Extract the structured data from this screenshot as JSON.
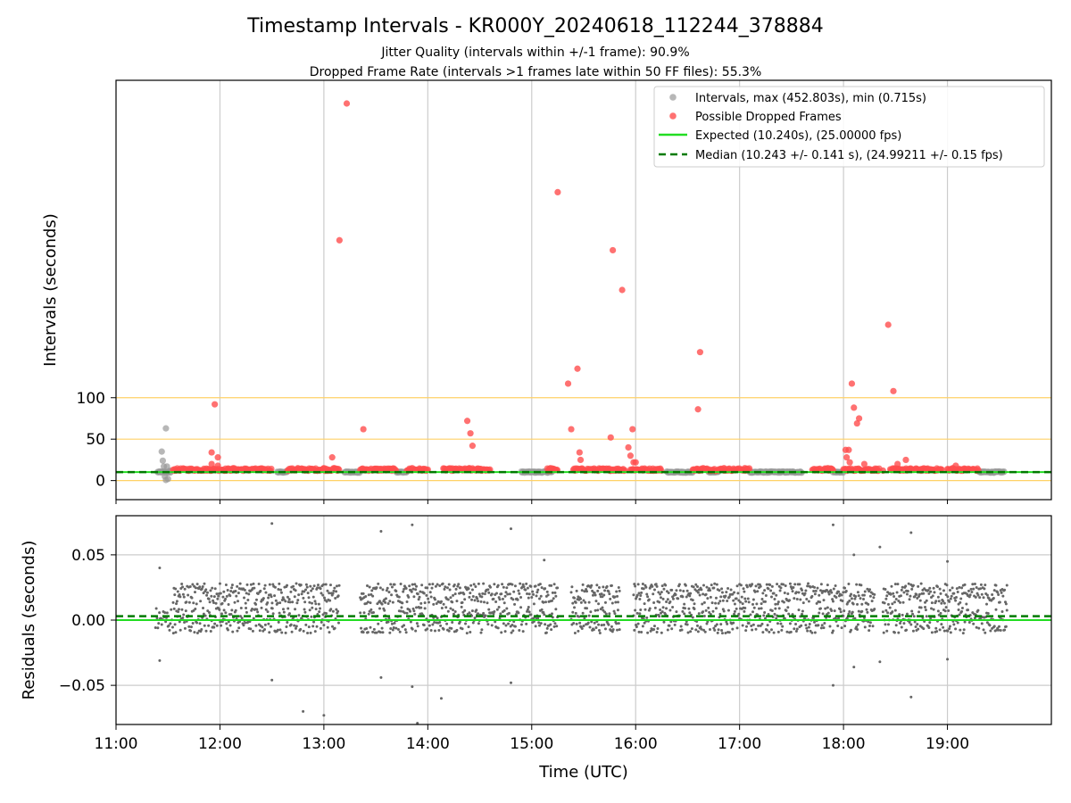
{
  "chart_data": [
    {
      "type": "scatter",
      "title": "Timestamp Intervals - KR000Y_20240618_112244_378884",
      "subtitle_1": "Jitter Quality (intervals within +/-1 frame): 90.9%",
      "subtitle_2": "Dropped Frame Rate (intervals >1 frames late within 50 FF files): 55.3%",
      "ylabel": "Intervals (seconds)",
      "x_axis": "time_of_day_hours",
      "xlim": [
        11.0,
        20.0
      ],
      "ylim": [
        -23,
        483
      ],
      "y_ticks": [
        0,
        50,
        100
      ],
      "grid": "vertical",
      "reference_lines": [
        {
          "y": 0,
          "color": "#ffd166"
        },
        {
          "y": 50,
          "color": "#ffd166"
        },
        {
          "y": 100,
          "color": "#ffd166"
        }
      ],
      "legend_position": "upper-right",
      "legend": [
        {
          "label": "Intervals, max (452.803s), min (0.715s)",
          "kind": "marker",
          "color": "#999999"
        },
        {
          "label": "Possible Dropped Frames",
          "kind": "marker",
          "color": "#ff4d4d"
        },
        {
          "label": "Expected (10.240s), (25.00000 fps)",
          "kind": "line",
          "color": "#22dd22"
        },
        {
          "label": "Median (10.243 +/- 0.141 s), (24.99211 +/- 0.15 fps)",
          "kind": "dashed",
          "color": "#007a00"
        }
      ],
      "expected_interval": 10.24,
      "median_interval": 10.243,
      "series": [
        {
          "color": "#999999",
          "segments": [
            [
              11.4,
              11.53
            ],
            [
              12.55,
              12.65
            ],
            [
              13.2,
              13.35
            ],
            [
              13.7,
              13.8
            ],
            [
              14.9,
              15.2
            ],
            [
              16.3,
              16.55
            ],
            [
              16.7,
              16.8
            ],
            [
              17.1,
              17.6
            ],
            [
              17.9,
              18.0
            ],
            [
              19.3,
              19.55
            ]
          ],
          "values": [
            [
              11.44,
              35
            ],
            [
              11.45,
              24
            ],
            [
              11.46,
              17
            ],
            [
              11.47,
              5
            ],
            [
              11.48,
              63
            ],
            [
              11.49,
              17
            ],
            [
              11.5,
              2
            ],
            [
              11.52,
              12
            ],
            [
              11.48,
              0.7
            ]
          ]
        },
        {
          "color": "#ff4d4d",
          "segments": [
            [
              11.55,
              12.5
            ],
            [
              12.65,
              13.15
            ],
            [
              13.35,
              13.7
            ],
            [
              13.8,
              14.0
            ],
            [
              14.15,
              14.6
            ],
            [
              15.15,
              15.25
            ],
            [
              15.4,
              15.9
            ],
            [
              15.95,
              16.25
            ],
            [
              16.55,
              17.1
            ],
            [
              17.7,
              17.9
            ],
            [
              18.0,
              18.35
            ],
            [
              18.45,
              18.95
            ],
            [
              19.0,
              19.3
            ]
          ],
          "values": [
            [
              11.95,
              92
            ],
            [
              11.92,
              34
            ],
            [
              11.98,
              28
            ],
            [
              11.92,
              20
            ],
            [
              11.98,
              18
            ],
            [
              12.13,
              15
            ],
            [
              12.75,
              15
            ],
            [
              13.0,
              15
            ],
            [
              13.08,
              28
            ],
            [
              13.1,
              15
            ],
            [
              13.15,
              290
            ],
            [
              13.22,
              455
            ],
            [
              13.38,
              62
            ],
            [
              13.5,
              14
            ],
            [
              13.85,
              15
            ],
            [
              14.2,
              14
            ],
            [
              14.38,
              72
            ],
            [
              14.41,
              57
            ],
            [
              14.43,
              42
            ],
            [
              14.4,
              15
            ],
            [
              15.18,
              15
            ],
            [
              15.25,
              348
            ],
            [
              15.35,
              117
            ],
            [
              15.38,
              62
            ],
            [
              15.44,
              135
            ],
            [
              15.46,
              34
            ],
            [
              15.47,
              25
            ],
            [
              15.76,
              52
            ],
            [
              15.78,
              278
            ],
            [
              15.87,
              230
            ],
            [
              15.93,
              40
            ],
            [
              15.95,
              30
            ],
            [
              15.97,
              62
            ],
            [
              15.98,
              22
            ],
            [
              16.0,
              22
            ],
            [
              16.6,
              86
            ],
            [
              16.62,
              155
            ],
            [
              16.65,
              15
            ],
            [
              16.85,
              15
            ],
            [
              17.05,
              15
            ],
            [
              17.85,
              15
            ],
            [
              18.02,
              37
            ],
            [
              18.03,
              28
            ],
            [
              18.05,
              37
            ],
            [
              18.06,
              22
            ],
            [
              18.08,
              117
            ],
            [
              18.1,
              88
            ],
            [
              18.13,
              69
            ],
            [
              18.15,
              75
            ],
            [
              18.2,
              20
            ],
            [
              18.38,
              12
            ],
            [
              18.43,
              188
            ],
            [
              18.48,
              108
            ],
            [
              18.52,
              20
            ],
            [
              18.6,
              25
            ],
            [
              19.05,
              15
            ],
            [
              19.08,
              18
            ]
          ]
        }
      ]
    },
    {
      "type": "scatter",
      "xlabel": "Time (UTC)",
      "ylabel": "Residuals (seconds)",
      "x_axis": "time_of_day_hours",
      "xlim": [
        11.0,
        20.0
      ],
      "ylim": [
        -0.08,
        0.08
      ],
      "y_ticks": [
        0.05,
        0.0,
        -0.05
      ],
      "y_tick_labels": [
        "0.05",
        "0.00",
        "−0.05"
      ],
      "x_ticks": [
        11,
        12,
        13,
        14,
        15,
        16,
        17,
        18,
        19
      ],
      "x_tick_labels": [
        "11:00",
        "12:00",
        "13:00",
        "14:00",
        "15:00",
        "16:00",
        "17:00",
        "18:00",
        "19:00"
      ],
      "grid": "both",
      "expected_residual": 0.0,
      "median_residual": 0.003,
      "series": [
        {
          "color": "#666666",
          "bands": [
            {
              "segments": [
                [
                  11.38,
                  13.15
                ],
                [
                  13.35,
                  15.25
                ],
                [
                  15.38,
                  15.85
                ],
                [
                  15.98,
                  18.3
                ],
                [
                  18.38,
                  19.58
                ]
              ],
              "center": 0.0,
              "spread": 0.01
            },
            {
              "segments": [
                [
                  11.55,
                  13.15
                ],
                [
                  13.35,
                  15.25
                ],
                [
                  15.38,
                  15.85
                ],
                [
                  15.98,
                  18.3
                ],
                [
                  18.38,
                  19.58
                ]
              ],
              "center": 0.02,
              "spread": 0.008
            }
          ],
          "outliers": [
            [
              11.42,
              0.04
            ],
            [
              11.42,
              -0.031
            ],
            [
              12.5,
              0.074
            ],
            [
              12.5,
              -0.046
            ],
            [
              12.8,
              -0.07
            ],
            [
              13.0,
              -0.073
            ],
            [
              13.55,
              0.068
            ],
            [
              13.55,
              -0.044
            ],
            [
              13.85,
              0.073
            ],
            [
              13.85,
              -0.051
            ],
            [
              13.9,
              -0.079
            ],
            [
              14.13,
              -0.06
            ],
            [
              14.8,
              0.07
            ],
            [
              14.8,
              -0.048
            ],
            [
              15.12,
              0.046
            ],
            [
              17.9,
              0.073
            ],
            [
              17.9,
              -0.05
            ],
            [
              18.1,
              0.05
            ],
            [
              18.1,
              -0.036
            ],
            [
              18.35,
              0.056
            ],
            [
              18.35,
              -0.032
            ],
            [
              18.65,
              0.067
            ],
            [
              18.65,
              -0.059
            ],
            [
              19.0,
              0.045
            ],
            [
              19.0,
              -0.03
            ]
          ]
        }
      ]
    }
  ]
}
